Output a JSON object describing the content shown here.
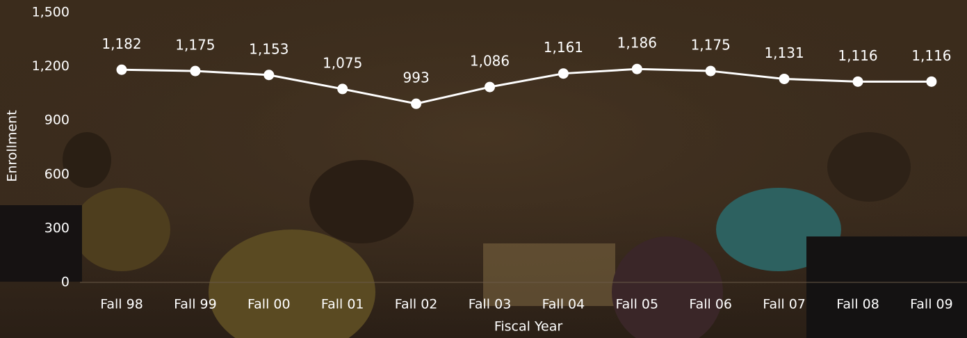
{
  "chart_data": {
    "type": "line",
    "x_label": "Fiscal Year",
    "y_label": "Enrollment",
    "categories": [
      "Fall 98",
      "Fall 99",
      "Fall 00",
      "Fall 01",
      "Fall 02",
      "Fall 03",
      "Fall 04",
      "Fall 05",
      "Fall 06",
      "Fall 07",
      "Fall 08",
      "Fall 09"
    ],
    "values": [
      1182,
      1175,
      1153,
      1075,
      993,
      1086,
      1161,
      1186,
      1175,
      1131,
      1116,
      1116
    ],
    "value_labels": [
      "1,182",
      "1,175",
      "1,153",
      "1,075",
      "993",
      "1,086",
      "1,161",
      "1,186",
      "1,175",
      "1,131",
      "1,116",
      "1,116"
    ],
    "color": "#ffffff",
    "ylim": [
      0,
      1500
    ],
    "yticks": [
      0,
      300,
      600,
      900,
      {
        "value": 1200,
        "label": "1,200"
      },
      {
        "value": 1500,
        "label": "1,500"
      }
    ],
    "grid": false
  }
}
